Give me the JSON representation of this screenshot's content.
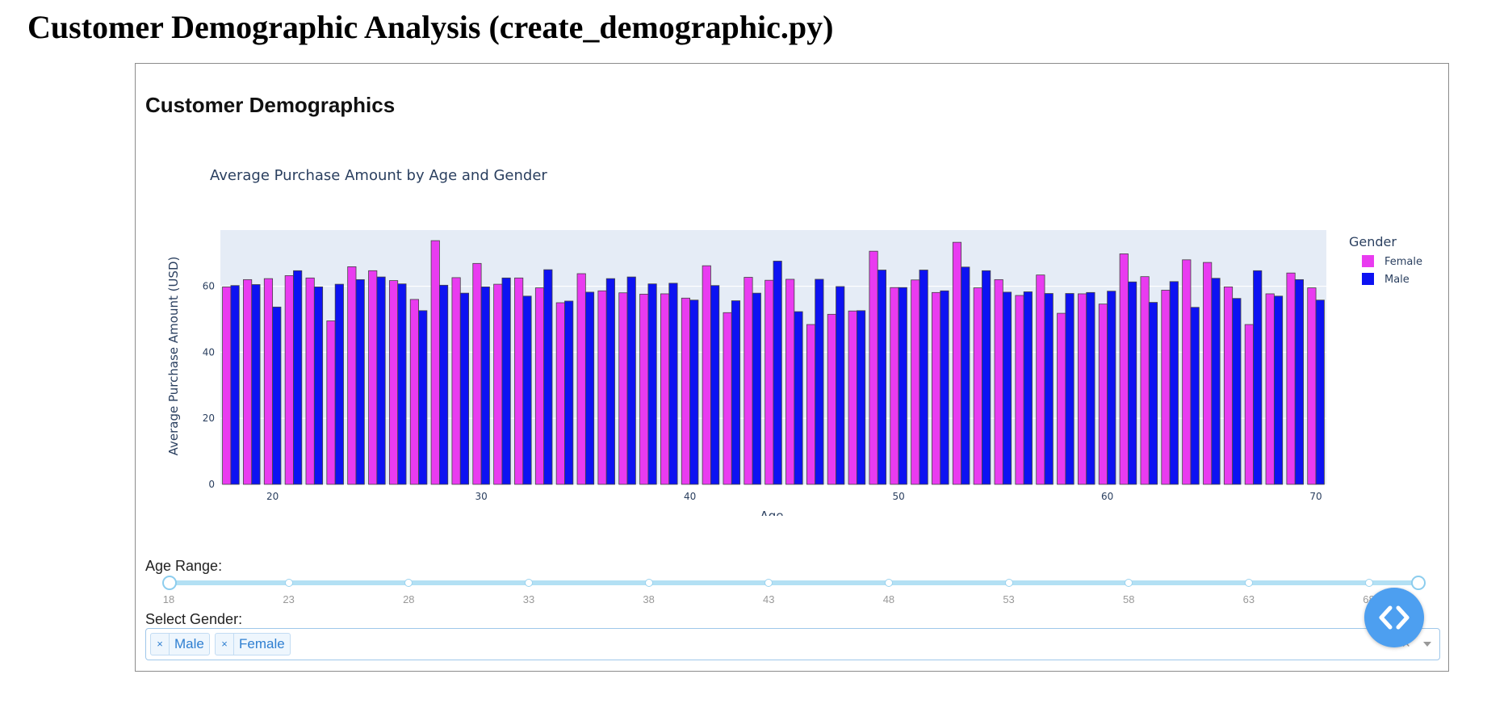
{
  "page": {
    "title": "Customer Demographic Analysis (create_demographic.py)"
  },
  "dashboard": {
    "heading": "Customer Demographics",
    "age_range_label": "Age Range:",
    "gender_label": "Select Gender:",
    "age_slider": {
      "min": 18,
      "max": 70,
      "value": [
        18,
        70
      ],
      "marks": [
        "18",
        "23",
        "28",
        "33",
        "38",
        "43",
        "48",
        "53",
        "58",
        "63",
        "68"
      ]
    },
    "gender_select": {
      "selected": [
        "Male",
        "Female"
      ],
      "remove_glyph": "×",
      "clear_glyph": "×"
    }
  },
  "colors": {
    "female": "#e93bf0",
    "male": "#0d12f2",
    "plot_bg": "#e5ecf6",
    "accent": "#4d9ff0"
  },
  "chart_data": {
    "type": "bar",
    "title": "Average Purchase Amount by Age and Gender",
    "xlabel": "Age",
    "ylabel": "Average Purchase Amount (USD)",
    "ylim": [
      0,
      77
    ],
    "xlim": [
      17.5,
      70.5
    ],
    "x_ticks": [
      20,
      30,
      40,
      50,
      60,
      70
    ],
    "y_ticks": [
      0,
      20,
      40,
      60
    ],
    "legend_title": "Gender",
    "legend_position": "top-right",
    "grid": true,
    "categories": [
      18,
      19,
      20,
      21,
      22,
      23,
      24,
      25,
      26,
      27,
      28,
      29,
      30,
      31,
      32,
      33,
      34,
      35,
      36,
      37,
      38,
      39,
      40,
      41,
      42,
      43,
      44,
      45,
      46,
      47,
      48,
      49,
      50,
      51,
      52,
      53,
      54,
      55,
      56,
      57,
      58,
      59,
      60,
      61,
      62,
      63,
      64,
      65,
      66,
      67,
      68,
      69,
      70
    ],
    "series": [
      {
        "name": "Female",
        "values": [
          59.8,
          62.0,
          62.3,
          63.2,
          62.5,
          49.5,
          65.9,
          64.7,
          61.7,
          56.0,
          73.8,
          62.6,
          66.9,
          60.6,
          62.5,
          59.5,
          55.0,
          63.8,
          58.6,
          58.0,
          57.6,
          57.7,
          56.4,
          66.2,
          52.0,
          62.7,
          61.8,
          62.1,
          48.4,
          51.5,
          52.5,
          70.6,
          59.6,
          61.9,
          58.1,
          73.3,
          59.5,
          62.0,
          57.2,
          63.4,
          51.8,
          57.7,
          54.6,
          69.8,
          62.9,
          58.8,
          68.0,
          67.2,
          59.8,
          48.4,
          57.7,
          64.0,
          59.5
        ]
      },
      {
        "name": "Male",
        "values": [
          60.2,
          60.5,
          53.7,
          64.7,
          59.8,
          60.6,
          62.0,
          62.8,
          60.7,
          52.6,
          60.3,
          57.9,
          59.8,
          62.5,
          57.0,
          65.0,
          55.5,
          58.2,
          62.3,
          62.8,
          60.7,
          60.9,
          55.8,
          60.2,
          55.6,
          57.9,
          67.6,
          52.3,
          62.1,
          59.9,
          52.6,
          64.9,
          59.6,
          64.9,
          58.6,
          65.8,
          64.7,
          58.2,
          58.3,
          57.8,
          57.8,
          58.1,
          58.5,
          61.3,
          55.1,
          61.4,
          53.6,
          62.4,
          56.3,
          64.7,
          57.0,
          62.0,
          55.8
        ]
      }
    ]
  }
}
